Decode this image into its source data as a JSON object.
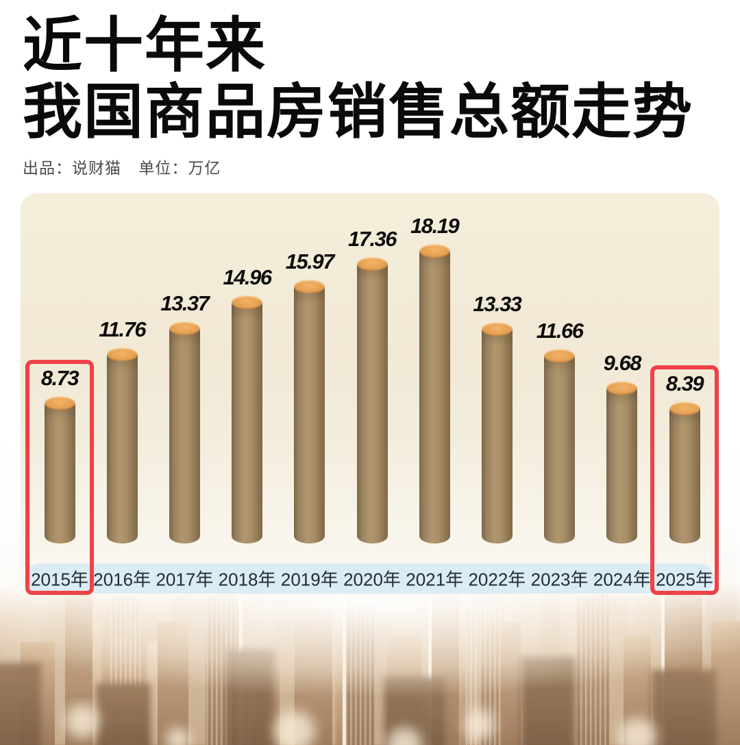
{
  "header": {
    "title_line1": "近十年来",
    "title_line2": "我国商品房销售总额走势",
    "credit_label": "出品：说财猫",
    "unit_label": "单位：万亿"
  },
  "chart_data": {
    "type": "bar",
    "title": "近十年来我国商品房销售总额走势",
    "source": "说财猫",
    "unit": "万亿",
    "categories": [
      "2015年",
      "2016年",
      "2017年",
      "2018年",
      "2019年",
      "2020年",
      "2021年",
      "2022年",
      "2023年",
      "2024年",
      "2025年"
    ],
    "values": [
      8.73,
      11.76,
      13.37,
      14.96,
      15.97,
      17.36,
      18.19,
      13.33,
      11.66,
      9.68,
      8.39
    ],
    "highlight_indices": [
      0,
      10
    ],
    "layout": {
      "grid": false,
      "value_labels": "above-bars",
      "axis": "x-categories-only",
      "bar_style": "3d-cylinder"
    },
    "colors": {
      "bar_body": "#a98f68",
      "bar_top": "#e7a152",
      "value_label": "#0d0d0d",
      "highlight_box": "#ee4247",
      "axis_band": "#dcecf4",
      "panel_background": "#f2ebd8"
    }
  }
}
